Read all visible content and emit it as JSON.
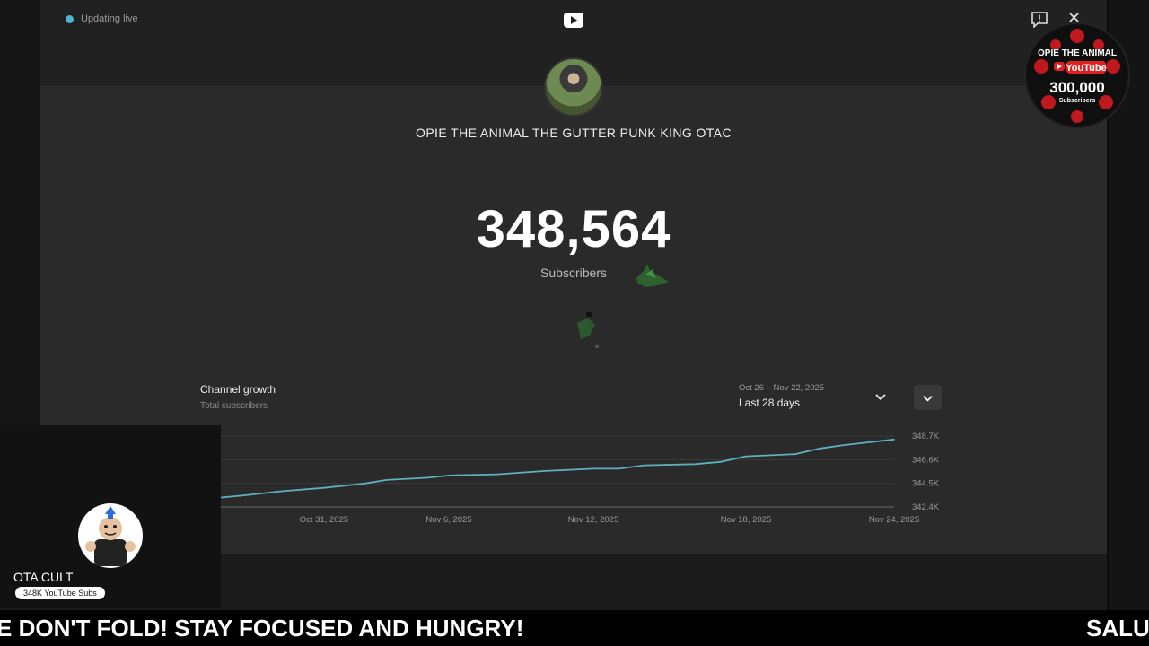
{
  "overlay": {
    "live_text": "Updating live",
    "channel_name": "OPIE THE ANIMAL THE GUTTER PUNK KING OTAC",
    "subscriber_count": "348,564",
    "subscriber_label": "Subscribers"
  },
  "growth": {
    "title": "Channel growth",
    "subtitle": "Total subscribers",
    "range_dates": "Oct 26 – Nov 22, 2025",
    "range_label": "Last 28 days"
  },
  "chart_data": {
    "type": "line",
    "xlabel": "",
    "ylabel": "",
    "x_ticks": [
      "Oct 31, 2025",
      "Nov 6, 2025",
      "Nov 12, 2025",
      "Nov 18, 2025",
      "Nov 24, 2025"
    ],
    "y_ticks": [
      "348.7K",
      "346.6K",
      "344.5K",
      "342.4K"
    ],
    "ylim": [
      342400,
      348700
    ],
    "grid": true,
    "series": [
      {
        "color": "#5fb0bf",
        "points": [
          {
            "x": "2025-10-27",
            "y": 343400
          },
          {
            "x": "2025-10-29",
            "y": 343800
          },
          {
            "x": "2025-10-31",
            "y": 344100
          },
          {
            "x": "2025-11-02",
            "y": 344500
          },
          {
            "x": "2025-11-03",
            "y": 344800
          },
          {
            "x": "2025-11-05",
            "y": 345000
          },
          {
            "x": "2025-11-06",
            "y": 345200
          },
          {
            "x": "2025-11-08",
            "y": 345300
          },
          {
            "x": "2025-11-10",
            "y": 345600
          },
          {
            "x": "2025-11-12",
            "y": 345800
          },
          {
            "x": "2025-11-13",
            "y": 345800
          },
          {
            "x": "2025-11-14",
            "y": 346100
          },
          {
            "x": "2025-11-16",
            "y": 346200
          },
          {
            "x": "2025-11-17",
            "y": 346400
          },
          {
            "x": "2025-11-18",
            "y": 346900
          },
          {
            "x": "2025-11-20",
            "y": 347100
          },
          {
            "x": "2025-11-21",
            "y": 347600
          },
          {
            "x": "2025-11-22",
            "y": 347900
          },
          {
            "x": "2025-11-24",
            "y": 348400
          }
        ]
      }
    ]
  },
  "streamer": {
    "name": "OTA CULT",
    "subs": "348K YouTube Subs"
  },
  "badge": {
    "line1": "OPIE THE ANIMAL",
    "line2": "YouTube",
    "line3": "300,000",
    "line4": "Subscribers"
  },
  "ticker": {
    "text_left": "E DON'T FOLD! STAY FOCUSED AND HUNGRY!",
    "text_right": "SALU"
  },
  "icons": {
    "youtube": "youtube-logo-icon",
    "feedback": "feedback-icon",
    "close": "close-icon",
    "chevron": "chevron-down-icon"
  }
}
